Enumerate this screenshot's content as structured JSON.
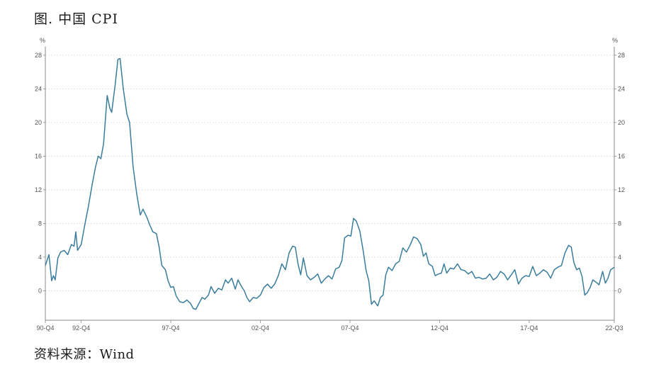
{
  "title": "图. 中国 CPI",
  "source": "资料来源：Wind",
  "chart_data": {
    "type": "line",
    "title": "图. 中国 CPI",
    "ylabel_left": "%",
    "ylabel_right": "%",
    "ylim": [
      -3.5,
      29
    ],
    "yticks": [
      0,
      4,
      8,
      12,
      16,
      20,
      24,
      28
    ],
    "xlim": [
      1990.75,
      2022.5
    ],
    "xticks": [
      {
        "label": "90-Q4",
        "x": 1990.75
      },
      {
        "label": "92-Q4",
        "x": 1992.75
      },
      {
        "label": "97-Q4",
        "x": 1997.75
      },
      {
        "label": "02-Q4",
        "x": 2002.75
      },
      {
        "label": "07-Q4",
        "x": 2007.75
      },
      {
        "label": "12-Q4",
        "x": 2012.75
      },
      {
        "label": "17-Q4",
        "x": 2017.75
      },
      {
        "label": "22-Q3",
        "x": 2022.5
      }
    ],
    "grid": true,
    "line_color": "#3a7d9c",
    "series": [
      {
        "name": "",
        "points": [
          [
            1990.75,
            3.0
          ],
          [
            1990.95,
            4.3
          ],
          [
            1991.1,
            1.2
          ],
          [
            1991.2,
            1.8
          ],
          [
            1991.3,
            1.3
          ],
          [
            1991.45,
            3.9
          ],
          [
            1991.6,
            4.6
          ],
          [
            1991.8,
            4.8
          ],
          [
            1992.0,
            4.3
          ],
          [
            1992.2,
            5.5
          ],
          [
            1992.35,
            5.3
          ],
          [
            1992.45,
            7.0
          ],
          [
            1992.55,
            4.8
          ],
          [
            1992.75,
            5.5
          ],
          [
            1992.95,
            7.8
          ],
          [
            1993.15,
            10.0
          ],
          [
            1993.35,
            12.5
          ],
          [
            1993.55,
            14.7
          ],
          [
            1993.7,
            16.0
          ],
          [
            1993.85,
            15.7
          ],
          [
            1994.0,
            17.5
          ],
          [
            1994.2,
            23.2
          ],
          [
            1994.35,
            21.7
          ],
          [
            1994.45,
            21.2
          ],
          [
            1994.65,
            24.5
          ],
          [
            1994.8,
            27.5
          ],
          [
            1994.92,
            27.6
          ],
          [
            1995.1,
            24.0
          ],
          [
            1995.3,
            21.0
          ],
          [
            1995.45,
            20.0
          ],
          [
            1995.65,
            14.7
          ],
          [
            1995.85,
            11.5
          ],
          [
            1996.05,
            9.0
          ],
          [
            1996.2,
            9.7
          ],
          [
            1996.4,
            8.8
          ],
          [
            1996.6,
            7.7
          ],
          [
            1996.75,
            7.0
          ],
          [
            1996.95,
            6.8
          ],
          [
            1997.1,
            5.2
          ],
          [
            1997.25,
            3.0
          ],
          [
            1997.45,
            2.5
          ],
          [
            1997.6,
            1.2
          ],
          [
            1997.75,
            0.4
          ],
          [
            1997.9,
            0.5
          ],
          [
            1998.05,
            -0.6
          ],
          [
            1998.25,
            -1.3
          ],
          [
            1998.45,
            -1.4
          ],
          [
            1998.65,
            -1.1
          ],
          [
            1998.85,
            -1.5
          ],
          [
            1999.0,
            -2.1
          ],
          [
            1999.15,
            -2.2
          ],
          [
            1999.3,
            -1.6
          ],
          [
            1999.5,
            -0.8
          ],
          [
            1999.65,
            -1.0
          ],
          [
            1999.85,
            -0.5
          ],
          [
            2000.0,
            0.5
          ],
          [
            2000.2,
            -0.3
          ],
          [
            2000.4,
            0.3
          ],
          [
            2000.6,
            0.1
          ],
          [
            2000.8,
            1.3
          ],
          [
            2000.95,
            0.9
          ],
          [
            2001.15,
            1.5
          ],
          [
            2001.35,
            0.2
          ],
          [
            2001.5,
            1.3
          ],
          [
            2001.7,
            0.5
          ],
          [
            2001.85,
            0.0
          ],
          [
            2002.0,
            -0.8
          ],
          [
            2002.15,
            -1.3
          ],
          [
            2002.35,
            -0.8
          ],
          [
            2002.55,
            -0.9
          ],
          [
            2002.75,
            -0.5
          ],
          [
            2002.95,
            0.4
          ],
          [
            2003.15,
            0.8
          ],
          [
            2003.35,
            0.3
          ],
          [
            2003.55,
            0.8
          ],
          [
            2003.75,
            1.8
          ],
          [
            2003.95,
            3.2
          ],
          [
            2004.15,
            2.5
          ],
          [
            2004.35,
            4.5
          ],
          [
            2004.55,
            5.3
          ],
          [
            2004.7,
            5.2
          ],
          [
            2004.85,
            3.2
          ],
          [
            2005.0,
            1.9
          ],
          [
            2005.15,
            3.9
          ],
          [
            2005.35,
            1.8
          ],
          [
            2005.55,
            1.3
          ],
          [
            2005.75,
            1.6
          ],
          [
            2005.95,
            2.0
          ],
          [
            2006.15,
            0.9
          ],
          [
            2006.35,
            1.4
          ],
          [
            2006.55,
            1.8
          ],
          [
            2006.75,
            1.4
          ],
          [
            2006.95,
            2.6
          ],
          [
            2007.15,
            2.8
          ],
          [
            2007.3,
            3.6
          ],
          [
            2007.45,
            6.3
          ],
          [
            2007.65,
            6.6
          ],
          [
            2007.8,
            6.5
          ],
          [
            2007.95,
            8.6
          ],
          [
            2008.1,
            8.3
          ],
          [
            2008.3,
            7.1
          ],
          [
            2008.5,
            4.6
          ],
          [
            2008.65,
            2.4
          ],
          [
            2008.8,
            1.2
          ],
          [
            2008.95,
            -1.6
          ],
          [
            2009.1,
            -1.2
          ],
          [
            2009.3,
            -1.8
          ],
          [
            2009.45,
            -0.8
          ],
          [
            2009.6,
            -0.5
          ],
          [
            2009.75,
            1.9
          ],
          [
            2009.9,
            2.8
          ],
          [
            2010.1,
            2.4
          ],
          [
            2010.3,
            3.2
          ],
          [
            2010.5,
            3.5
          ],
          [
            2010.7,
            5.1
          ],
          [
            2010.9,
            4.6
          ],
          [
            2011.1,
            5.4
          ],
          [
            2011.3,
            6.4
          ],
          [
            2011.5,
            6.2
          ],
          [
            2011.7,
            5.5
          ],
          [
            2011.85,
            4.1
          ],
          [
            2012.0,
            4.5
          ],
          [
            2012.15,
            3.2
          ],
          [
            2012.35,
            2.9
          ],
          [
            2012.5,
            1.8
          ],
          [
            2012.7,
            2.0
          ],
          [
            2012.85,
            2.1
          ],
          [
            2013.0,
            3.2
          ],
          [
            2013.15,
            2.1
          ],
          [
            2013.35,
            2.7
          ],
          [
            2013.55,
            2.6
          ],
          [
            2013.75,
            3.2
          ],
          [
            2013.95,
            2.5
          ],
          [
            2014.15,
            2.4
          ],
          [
            2014.35,
            2.0
          ],
          [
            2014.55,
            2.3
          ],
          [
            2014.75,
            1.5
          ],
          [
            2014.95,
            1.6
          ],
          [
            2015.15,
            1.4
          ],
          [
            2015.35,
            1.5
          ],
          [
            2015.55,
            2.0
          ],
          [
            2015.75,
            1.3
          ],
          [
            2015.95,
            1.6
          ],
          [
            2016.15,
            2.3
          ],
          [
            2016.35,
            2.0
          ],
          [
            2016.55,
            1.3
          ],
          [
            2016.75,
            1.9
          ],
          [
            2016.95,
            2.5
          ],
          [
            2017.15,
            0.8
          ],
          [
            2017.35,
            1.5
          ],
          [
            2017.55,
            1.8
          ],
          [
            2017.75,
            1.7
          ],
          [
            2017.95,
            2.9
          ],
          [
            2018.15,
            1.8
          ],
          [
            2018.35,
            2.1
          ],
          [
            2018.55,
            2.5
          ],
          [
            2018.75,
            2.2
          ],
          [
            2018.95,
            1.5
          ],
          [
            2019.15,
            2.5
          ],
          [
            2019.35,
            2.8
          ],
          [
            2019.55,
            3.0
          ],
          [
            2019.75,
            4.5
          ],
          [
            2019.95,
            5.4
          ],
          [
            2020.1,
            5.2
          ],
          [
            2020.25,
            3.3
          ],
          [
            2020.4,
            2.5
          ],
          [
            2020.55,
            2.7
          ],
          [
            2020.7,
            1.7
          ],
          [
            2020.85,
            -0.5
          ],
          [
            2021.0,
            -0.2
          ],
          [
            2021.15,
            0.4
          ],
          [
            2021.3,
            1.3
          ],
          [
            2021.5,
            1.0
          ],
          [
            2021.65,
            0.7
          ],
          [
            2021.85,
            2.3
          ],
          [
            2022.0,
            0.9
          ],
          [
            2022.15,
            1.5
          ],
          [
            2022.3,
            2.5
          ],
          [
            2022.5,
            2.8
          ]
        ]
      }
    ]
  }
}
